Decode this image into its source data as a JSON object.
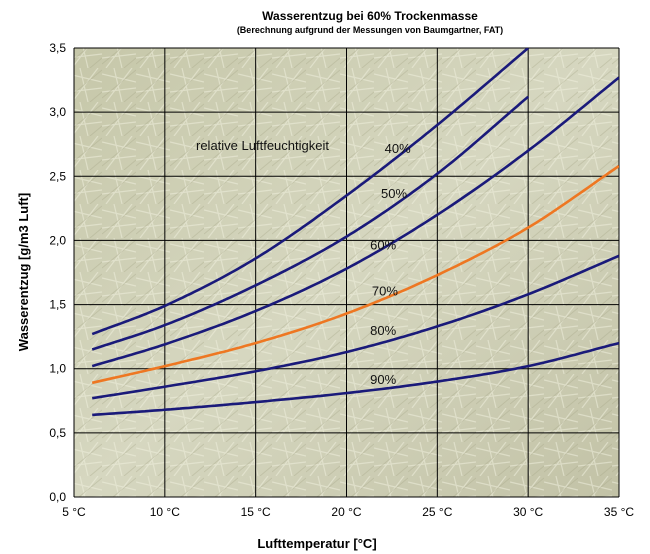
{
  "chart_data": {
    "type": "line",
    "title": "Wasserentzug bei 60% Trockenmasse",
    "subtitle": "(Berechnung aufgrund der Messungen von Baumgartner, FAT)",
    "xlabel": "Lufttemperatur [°C]",
    "ylabel": "Wasserentzug [g/m3 Luft]",
    "xlim": [
      5,
      35
    ],
    "ylim": [
      0,
      3.5
    ],
    "grid": true,
    "x_tick_labels": [
      "5 °C",
      "10 °C",
      "15 °C",
      "20 °C",
      "25 °C",
      "30 °C",
      "35 °C"
    ],
    "y_tick_labels": [
      "0,0",
      "0,5",
      "1,0",
      "1,5",
      "2,0",
      "2,5",
      "3,0",
      "3,5"
    ],
    "annotation": "relative Luftfeuchtigkeit",
    "x": [
      6,
      10,
      15,
      20,
      25,
      30,
      35
    ],
    "series": [
      {
        "name": "40%",
        "color": "#1a1a7a",
        "values": [
          1.27,
          1.49,
          1.86,
          2.35,
          2.9,
          3.5,
          null
        ]
      },
      {
        "name": "50%",
        "color": "#1a1a7a",
        "values": [
          1.15,
          1.34,
          1.65,
          2.03,
          2.52,
          3.12,
          null
        ]
      },
      {
        "name": "60%",
        "color": "#1a1a7a",
        "values": [
          1.02,
          1.19,
          1.45,
          1.78,
          2.2,
          2.7,
          3.27
        ]
      },
      {
        "name": "70%",
        "color": "#ee7722",
        "values": [
          0.89,
          1.02,
          1.2,
          1.43,
          1.73,
          2.1,
          2.58
        ]
      },
      {
        "name": "80%",
        "color": "#1a1a7a",
        "values": [
          0.77,
          0.86,
          0.98,
          1.13,
          1.33,
          1.58,
          1.88
        ]
      },
      {
        "name": "90%",
        "color": "#1a1a7a",
        "values": [
          0.64,
          0.68,
          0.74,
          0.81,
          0.9,
          1.02,
          1.2
        ]
      }
    ],
    "label_positions_data": [
      {
        "series": "40%",
        "x": 22.1,
        "y": 2.72
      },
      {
        "series": "50%",
        "x": 21.9,
        "y": 2.37
      },
      {
        "series": "60%",
        "x": 21.3,
        "y": 1.97
      },
      {
        "series": "70%",
        "x": 21.4,
        "y": 1.61
      },
      {
        "series": "80%",
        "x": 21.3,
        "y": 1.3
      },
      {
        "series": "90%",
        "x": 21.3,
        "y": 0.92
      }
    ]
  }
}
